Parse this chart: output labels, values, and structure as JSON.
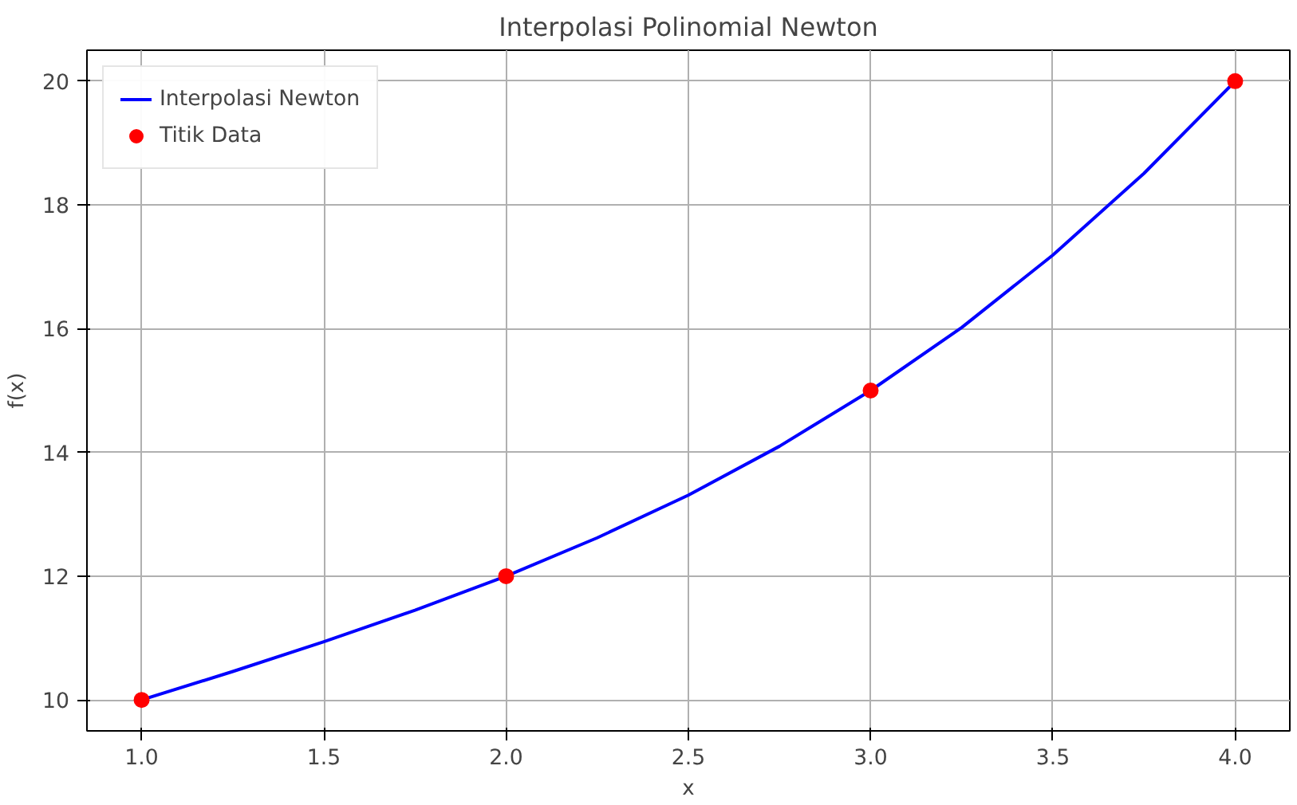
{
  "chart_data": {
    "type": "line",
    "title": "Interpolasi Polinomial Newton",
    "xlabel": "x",
    "ylabel": "f(x)",
    "series": [
      {
        "name": "Interpolasi Newton",
        "color": "#0000ff",
        "x": [
          1,
          1.25,
          1.5,
          1.75,
          2,
          2.25,
          2.5,
          2.75,
          3,
          3.25,
          3.5,
          3.75,
          4
        ],
        "values": [
          10,
          10.46,
          10.94,
          11.45,
          12,
          12.62,
          13.31,
          14.1,
          15,
          16.02,
          17.19,
          18.51,
          20
        ]
      },
      {
        "name": "Titik Data",
        "type": "scatter",
        "color": "#ff0000",
        "marker": "circle",
        "x": [
          1,
          2,
          3,
          4
        ],
        "values": [
          10,
          12,
          15,
          20
        ]
      }
    ],
    "xlim": [
      0.85,
      4.15
    ],
    "ylim": [
      9.5,
      20.5
    ],
    "xticks": [
      {
        "value": 1,
        "label": "1.0"
      },
      {
        "value": 1.5,
        "label": "1.5"
      },
      {
        "value": 2,
        "label": "2.0"
      },
      {
        "value": 2.5,
        "label": "2.5"
      },
      {
        "value": 3,
        "label": "3.0"
      },
      {
        "value": 3.5,
        "label": "3.5"
      },
      {
        "value": 4,
        "label": "4.0"
      }
    ],
    "yticks": [
      10,
      12,
      14,
      16,
      18,
      20
    ],
    "grid": true,
    "legend": "top left"
  }
}
